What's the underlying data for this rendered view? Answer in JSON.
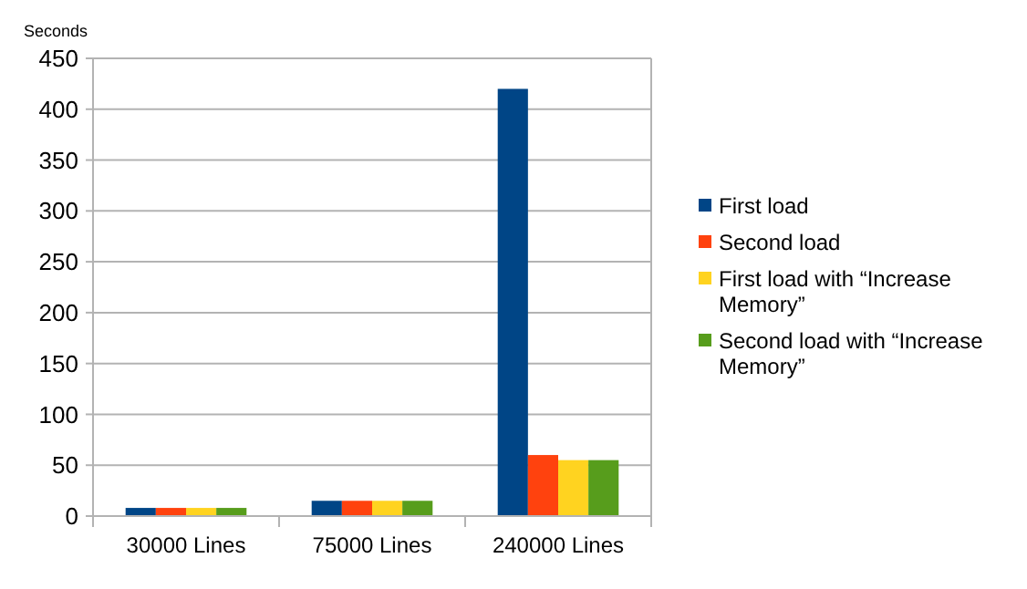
{
  "chart_data": {
    "type": "bar",
    "ylabel": "Seconds",
    "categories": [
      "30000 Lines",
      "75000 Lines",
      "240000 Lines"
    ],
    "series": [
      {
        "name": "First load",
        "color": "#004586",
        "values": [
          8,
          15,
          420
        ]
      },
      {
        "name": "Second load",
        "color": "#ff420e",
        "values": [
          8,
          15,
          60
        ]
      },
      {
        "name": "First load with “Increase Memory”",
        "color": "#ffd320",
        "values": [
          8,
          15,
          55
        ]
      },
      {
        "name": "Second load with “Increase Memory”",
        "color": "#579d1c",
        "values": [
          8,
          15,
          55
        ]
      }
    ],
    "ylim": [
      0,
      450
    ],
    "yticks": [
      0,
      50,
      100,
      150,
      200,
      250,
      300,
      350,
      400,
      450
    ],
    "grid": "y",
    "legend": "right"
  }
}
